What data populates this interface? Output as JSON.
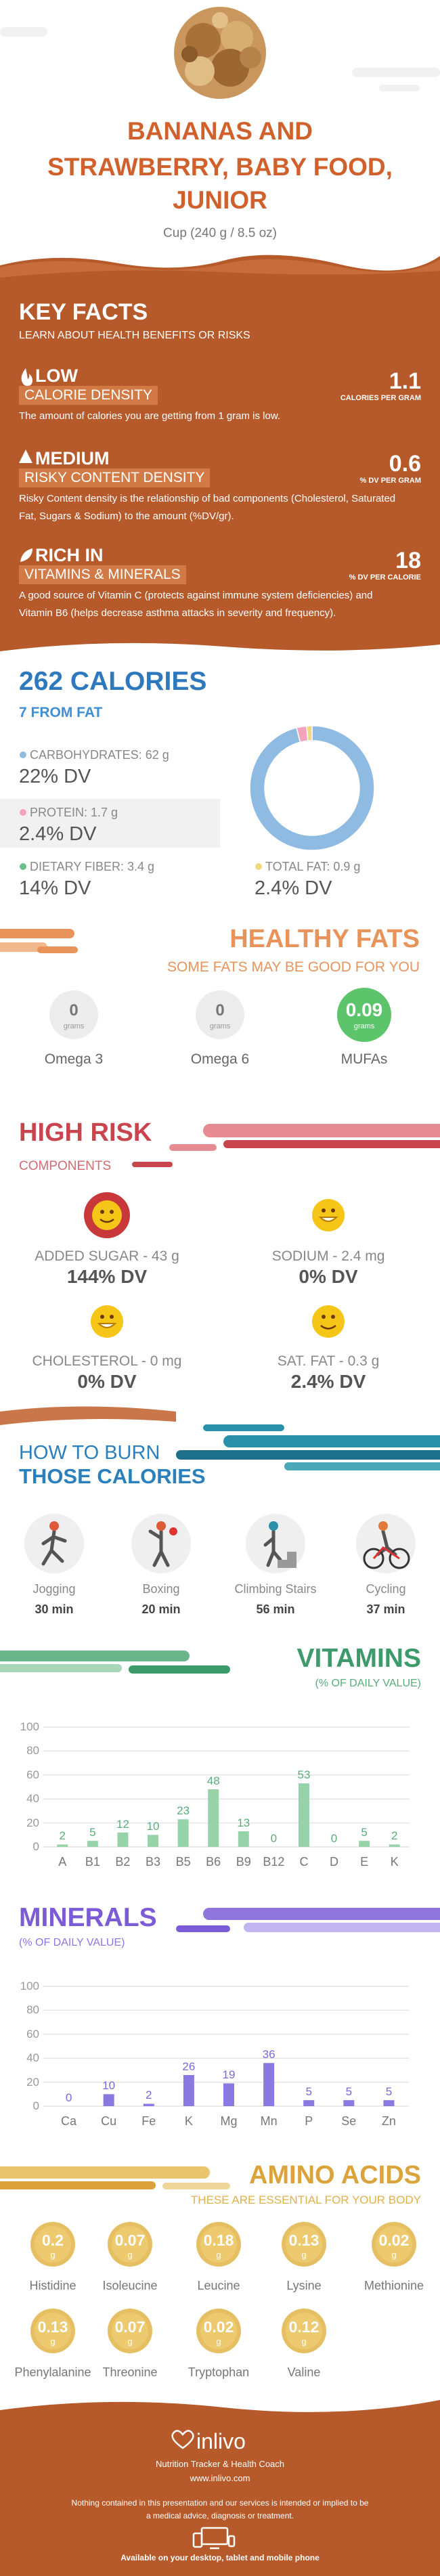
{
  "header": {
    "title_lines": [
      "BANANAS AND",
      "STRAWBERRY, BABY FOOD,",
      "JUNIOR"
    ],
    "serving": "Cup (240 g / 8.5 oz)"
  },
  "key_facts": {
    "title": "KEY FACTS",
    "subtitle": "LEARN ABOUT HEALTH BENEFITS OR RISKS",
    "facts": [
      {
        "level": "LOW",
        "category": "CALORIE DENSITY",
        "description": "The amount of calories you are getting from 1 gram is low.",
        "value": 1.1,
        "unit": "CALORIES PER GRAM"
      },
      {
        "level": "MEDIUM",
        "category": "RISKY CONTENT DENSITY",
        "description": "Risky Content density is the relationship of bad components (Cholesterol, Saturated Fat, Sugars & Sodium) to the amount (%DV/gr).",
        "value": 0.6,
        "unit": "% DV PER GRAM"
      },
      {
        "level": "RICH IN",
        "category": "VITAMINS & MINERALS",
        "description": "A good source of Vitamin C (protects against immune system deficiencies) and Vitamin B6 (helps decrease asthma attacks in severity and frequency).",
        "value": 18,
        "unit": "% DV PER CALORIE"
      }
    ]
  },
  "calories": {
    "title": "262 CALORIES",
    "fat_line": "7 FROM FAT",
    "nutrients": [
      {
        "label": "CARBOHYDRATES: 62 g",
        "dv": "22% DV"
      },
      {
        "label": "PROTEIN: 1.7 g",
        "dv": "2.4% DV"
      },
      {
        "label": "DIETARY FIBER: 3.4 g",
        "dv": "14% DV"
      },
      {
        "label": "TOTAL FAT: 0.9 g",
        "dv": "2.4% DV"
      }
    ]
  },
  "healthy_fats": {
    "title": "HEALTHY FATS",
    "subtitle": "SOME FATS MAY BE GOOD FOR YOU",
    "unit": "grams",
    "items": [
      {
        "name": "Omega 3",
        "value": 0
      },
      {
        "name": "Omega 6",
        "value": 0
      },
      {
        "name": "MUFAs",
        "value": 0.09
      }
    ]
  },
  "high_risk": {
    "title": "HIGH RISK",
    "subtitle": "COMPONENTS",
    "items": [
      {
        "label": "ADDED SUGAR - 43 g",
        "dv": "144% DV"
      },
      {
        "label": "SODIUM - 2.4 mg",
        "dv": "0% DV"
      },
      {
        "label": "CHOLESTEROL - 0 mg",
        "dv": "0% DV"
      },
      {
        "label": "SAT. FAT - 0.3 g",
        "dv": "2.4% DV"
      }
    ]
  },
  "burn": {
    "title_lines": [
      "HOW TO BURN",
      "THOSE CALORIES"
    ],
    "activities": [
      {
        "name": "Jogging",
        "time": "30 min"
      },
      {
        "name": "Boxing",
        "time": "20 min"
      },
      {
        "name": "Climbing Stairs",
        "time": "56 min"
      },
      {
        "name": "Cycling",
        "time": "37 min"
      }
    ]
  },
  "chart_data": [
    {
      "type": "pie",
      "values": [
        62,
        1.7,
        0.9
      ],
      "colors": [
        "#8fbbe3",
        "#f4a3bd",
        "#f1da7e"
      ]
    },
    {
      "type": "bar",
      "title": "VITAMINS",
      "subtitle": "(% OF DAILY VALUE)",
      "categories": [
        "A",
        "B1",
        "B2",
        "B3",
        "B5",
        "B6",
        "B9",
        "B12",
        "C",
        "D",
        "E",
        "K"
      ],
      "values": [
        2,
        5,
        12,
        10,
        23,
        48,
        13,
        0,
        53,
        0,
        5,
        2
      ],
      "color": "#96d3a8",
      "label_color": "#5aad7b",
      "ylim": [
        0,
        100
      ],
      "yticks": [
        0,
        20,
        40,
        60,
        80,
        100
      ],
      "grid": true
    },
    {
      "type": "bar",
      "title": "MINERALS",
      "subtitle": "(% OF DAILY VALUE)",
      "categories": [
        "Ca",
        "Cu",
        "Fe",
        "K",
        "Mg",
        "Mn",
        "P",
        "Se",
        "Zn"
      ],
      "values": [
        0,
        10,
        2,
        26,
        19,
        36,
        5,
        5,
        5
      ],
      "color": "#8a79e0",
      "label_color": "#7b68d8",
      "ylim": [
        0,
        100
      ],
      "yticks": [
        0,
        20,
        40,
        60,
        80,
        100
      ],
      "grid": true
    }
  ],
  "amino_acids": {
    "title": "AMINO ACIDS",
    "subtitle": "THESE ARE ESSENTIAL FOR YOUR BODY",
    "unit": "g",
    "items": [
      {
        "name": "Histidine",
        "value": 0.2
      },
      {
        "name": "Isoleucine",
        "value": 0.07
      },
      {
        "name": "Leucine",
        "value": 0.18
      },
      {
        "name": "Lysine",
        "value": 0.13
      },
      {
        "name": "Methionine",
        "value": 0.02
      },
      {
        "name": "Phenylalanine",
        "value": 0.13
      },
      {
        "name": "Threonine",
        "value": 0.07
      },
      {
        "name": "Tryptophan",
        "value": 0.02
      },
      {
        "name": "Valine",
        "value": 0.12
      }
    ]
  },
  "footer": {
    "brand": "inlivo",
    "tagline": "Nutrition Tracker & Health Coach",
    "url": "www.inlivo.com",
    "disclaimer": "Nothing contained in this presentation and our services is intended or implied to be a medical advice, diagnosis or treatment.",
    "availability": "Available on your desktop, tablet and mobile phone"
  }
}
